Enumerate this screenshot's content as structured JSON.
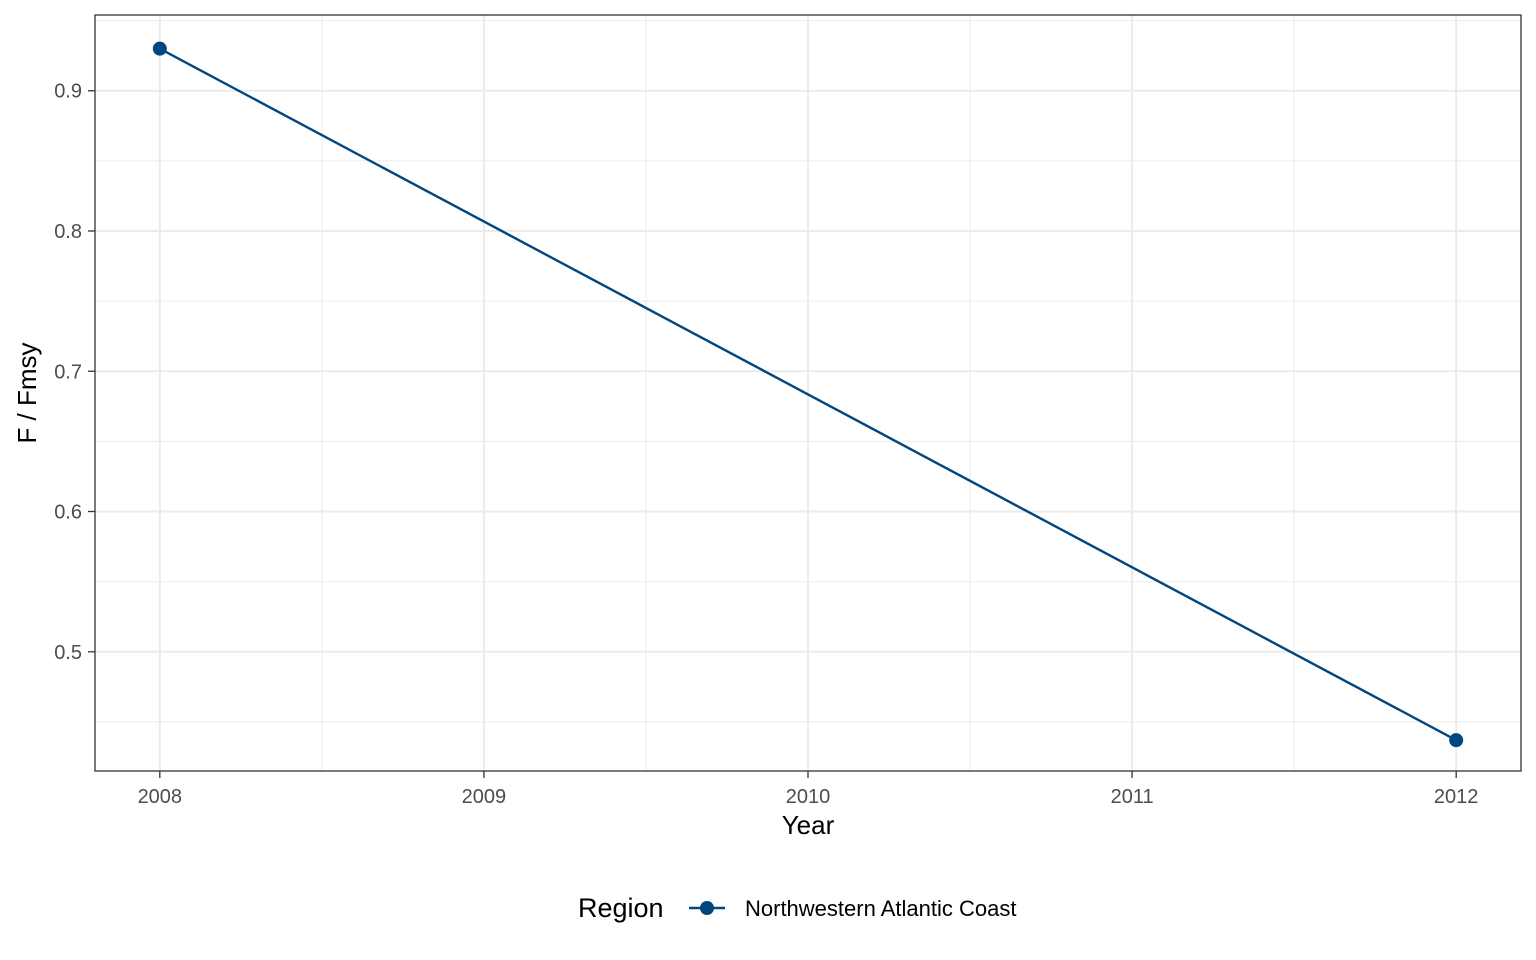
{
  "chart_data": {
    "type": "line",
    "title": "",
    "xlabel": "Year",
    "ylabel": "F / Fmsy",
    "x": [
      2008,
      2012
    ],
    "series": [
      {
        "name": "Northwestern Atlantic Coast",
        "values": [
          0.93,
          0.437
        ],
        "color": "#00467f"
      }
    ],
    "xlim": [
      2007.8,
      2012.2
    ],
    "ylim": [
      0.415,
      0.954
    ],
    "xticks": [
      2008,
      2009,
      2010,
      2011,
      2012
    ],
    "xtick_labels": [
      "2008",
      "2009",
      "2010",
      "2011",
      "2012"
    ],
    "yticks": [
      0.5,
      0.6,
      0.7,
      0.8,
      0.9
    ],
    "ytick_labels": [
      "0.5",
      "0.6",
      "0.7",
      "0.8",
      "0.9"
    ],
    "grid": true,
    "legend": {
      "title": "Region",
      "position": "bottom",
      "entries": [
        "Northwestern Atlantic Coast"
      ]
    }
  }
}
